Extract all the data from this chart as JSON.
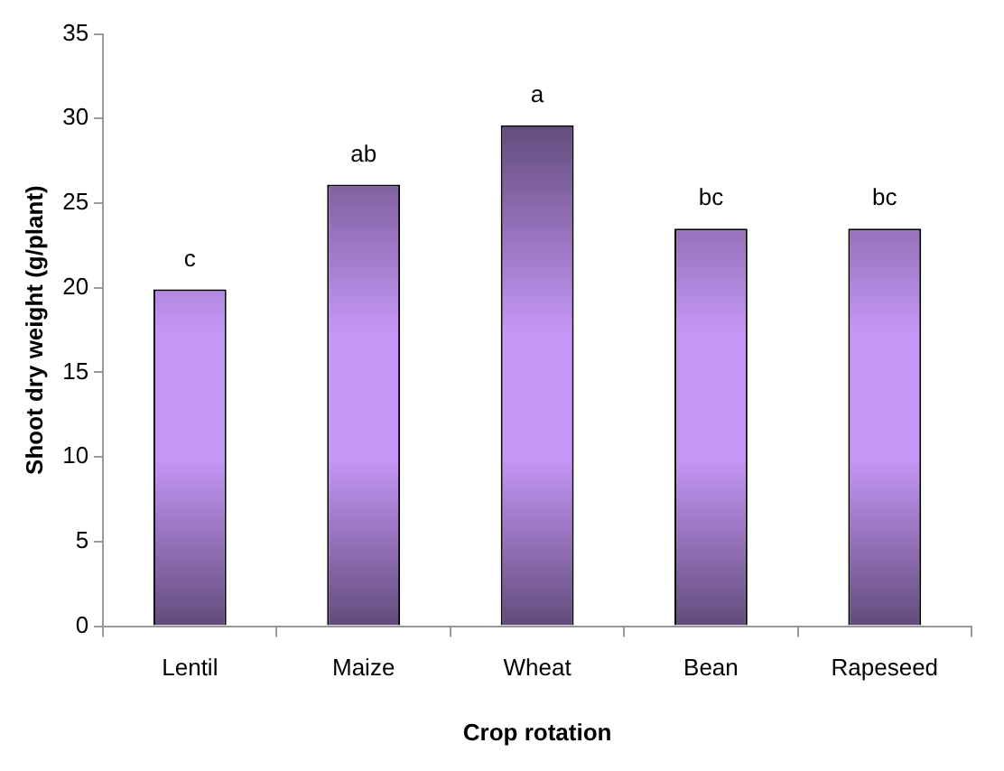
{
  "chart_data": {
    "type": "bar",
    "xlabel": "Crop rotation",
    "ylabel": "Shoot dry weight (g/plant)",
    "categories": [
      "Lentil",
      "Maize",
      "Wheat",
      "Bean",
      "Rapeseed"
    ],
    "values": [
      19.9,
      26.1,
      29.6,
      23.5,
      23.5
    ],
    "color": "#c496f5",
    "ylim": [
      0,
      35
    ],
    "yticks": [
      0,
      5,
      10,
      15,
      20,
      25,
      30,
      35
    ],
    "grid": false,
    "legend": false,
    "annotations": [
      {
        "text": "c",
        "x": "Lentil",
        "y": 19.9
      },
      {
        "text": "ab",
        "x": "Maize",
        "y": 26.1
      },
      {
        "text": "a",
        "x": "Wheat",
        "y": 29.6
      },
      {
        "text": "bc",
        "x": "Bean",
        "y": 23.5
      },
      {
        "text": "bc",
        "x": "Rapeseed",
        "y": 23.5
      }
    ]
  }
}
